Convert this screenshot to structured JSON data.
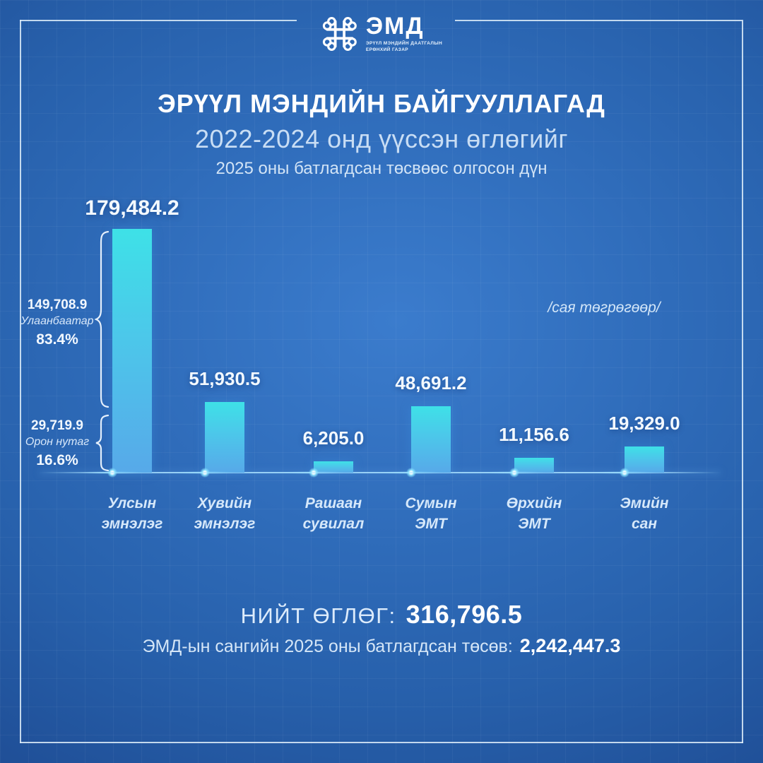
{
  "logo": {
    "brand": "ЭМД",
    "tagline_line1": "ЭРҮҮЛ МЭНДИЙН ДААТГАЛЫН",
    "tagline_line2": "ЕРӨНХИЙ ГАЗАР"
  },
  "title": {
    "line1": "ЭРҮҮЛ МЭНДИЙН БАЙГУУЛЛАГАД",
    "line2": "2022-2024 онд үүссэн өглөгийг",
    "line3": "2025 оны батлагдсан төсвөөс олгосон дүн"
  },
  "unit_note": "/сая төгрөгөөр/",
  "chart_data": {
    "type": "bar",
    "title": "ЭРҮҮЛ МЭНДИЙН БАЙГУУЛЛАГАД — 2022-2024 онд үүссэн өглөгийг 2025 оны батлагдсан төсвөөс олгосон дүн",
    "unit": "сая төгрөгөөр",
    "categories": [
      "Улсын эмнэлэг",
      "Хувийн эмнэлэг",
      "Рашаан сувилал",
      "Сумын ЭМТ",
      "Өрхийн ЭМТ",
      "Эмийн сан"
    ],
    "values": [
      179484.2,
      51930.5,
      6205.0,
      48691.2,
      11156.6,
      19329.0
    ],
    "value_labels": [
      "179,484.2",
      "51,930.5",
      "6,205.0",
      "48,691.2",
      "11,156.6",
      "19,329.0"
    ],
    "ylim": [
      0,
      179484.2
    ],
    "grid": false,
    "legend": false,
    "bar_color_top": "#3ee1e7",
    "bar_color_bottom": "#57a9e9",
    "annotations": [
      {
        "value": "149,708.9",
        "label": "Улаанбаатар",
        "percent": "83.4%",
        "target": "Улсын эмнэлэг"
      },
      {
        "value": "29,719.9",
        "label": "Орон нутаг",
        "percent": "16.6%",
        "target": "Улсын эмнэлэг"
      }
    ]
  },
  "footer": {
    "total_label": "НИЙТ ӨГЛӨГ:",
    "total_value": "316,796.5",
    "budget_label": "ЭМД-ын сангийн 2025 оны батлагдсан төсөв:",
    "budget_value": "2,242,447.3"
  },
  "colors": {
    "background_center": "#3b7ccd",
    "background_edge": "#1a4285",
    "frame": "#dfeefa",
    "bar_top": "#3ee1e7",
    "bar_bottom": "#57a9e9",
    "text_primary": "#ffffff",
    "text_secondary": "#c8ddf4"
  }
}
